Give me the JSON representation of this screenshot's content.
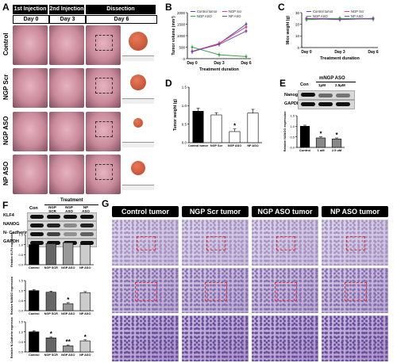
{
  "panel_a": {
    "label": "A",
    "headers": [
      "1st Injection",
      "2nd Injection",
      "Dissection"
    ],
    "days": [
      "Day 0",
      "Day 3",
      "Day 6"
    ],
    "rows": [
      "Control",
      "NGP Scr",
      "NGP ASO",
      "NP ASO"
    ],
    "colors": {
      "skin": "#c98a9a",
      "tumor": "#b8452e",
      "bg": "#ffffff"
    }
  },
  "panel_b": {
    "label": "B",
    "chart_data": {
      "type": "line",
      "x": [
        "Day 0",
        "Day 3",
        "Day 6"
      ],
      "ylabel": "Tumor volume (mm³)",
      "xlabel": "Treatment duration",
      "yticks": [
        "0",
        "500",
        "1000",
        "1500",
        "2000"
      ],
      "ylim": [
        0,
        2000
      ],
      "series": [
        {
          "name": "Control tumor",
          "color": "#3b56a6",
          "values": [
            300,
            650,
            1500
          ]
        },
        {
          "name": "NGP Scr",
          "color": "#d93a8a",
          "values": [
            320,
            660,
            1380
          ]
        },
        {
          "name": "NGP ASO",
          "color": "#3aa043",
          "values": [
            500,
            170,
            90
          ]
        },
        {
          "name": "NP ASO",
          "color": "#7a4aa6",
          "values": [
            310,
            620,
            1200
          ]
        }
      ]
    }
  },
  "panel_c": {
    "label": "C",
    "chart_data": {
      "type": "line",
      "x": [
        "Day 0",
        "Day 3",
        "Day 6"
      ],
      "ylabel": "Mice weight (g)",
      "xlabel": "Treatment duration",
      "yticks": [
        "0",
        "10",
        "20",
        "30"
      ],
      "ylim": [
        0,
        30
      ],
      "series": [
        {
          "name": "Control tumor",
          "color": "#3b56a6",
          "values": [
            25,
            25,
            25
          ]
        },
        {
          "name": "NGP Scr",
          "color": "#d93a8a",
          "values": [
            25,
            24.5,
            25
          ]
        },
        {
          "name": "NGP ASO",
          "color": "#3aa043",
          "values": [
            24,
            25,
            24.5
          ]
        },
        {
          "name": "NP ASO",
          "color": "#7a4aa6",
          "values": [
            25,
            24,
            25
          ]
        }
      ]
    }
  },
  "panel_d": {
    "label": "D",
    "chart_data": {
      "type": "bar",
      "categories": [
        "Control tumor",
        "NGP Scr",
        "NGP ASO",
        "NP ASO"
      ],
      "values": [
        0.85,
        0.75,
        0.3,
        0.8
      ],
      "errors": [
        0.08,
        0.06,
        0.07,
        0.1
      ],
      "fills": [
        "#000000",
        "#ffffff",
        "#ffffff",
        "#ffffff"
      ],
      "ylabel": "Tumor weight (g)",
      "yticks": [
        "0.0",
        "0.5",
        "1.0",
        "1.5"
      ],
      "ylim": [
        0,
        1.5
      ],
      "significance": [
        "",
        "",
        "*",
        ""
      ]
    }
  },
  "panel_e": {
    "label": "E",
    "blot_header": "mNGP ASO",
    "blot_lanes": [
      "Con",
      "1μM",
      "2.5μM"
    ],
    "blot_rows": [
      "Nanog",
      "GAPDH"
    ],
    "chart_data": {
      "type": "bar",
      "categories": [
        "Control",
        "1 uM",
        "2.5 uM"
      ],
      "values": [
        1.0,
        0.45,
        0.4
      ],
      "fills": [
        "#000000",
        "#888888",
        "#888888"
      ],
      "ylabel": "Relative NANOG expression",
      "yticks": [
        "0.0",
        "0.5",
        "1.0",
        "1.5"
      ],
      "ylim": [
        0,
        1.5
      ],
      "significance": [
        "",
        "*",
        "*"
      ]
    }
  },
  "panel_f": {
    "label": "F",
    "blot_title": "Treatment",
    "blot_lanes": [
      "Con",
      "NGP SCR",
      "NGP ASO",
      "NP ASO"
    ],
    "blot_rows": [
      "KLF4",
      "NANOG",
      "N- Cadherin",
      "GAPDH"
    ],
    "chart_data": [
      {
        "type": "bar",
        "categories": [
          "Control",
          "NGP SCR",
          "NGP ASO",
          "NP ASO"
        ],
        "values": [
          1.0,
          1.05,
          1.1,
          1.0
        ],
        "fills": [
          "#000000",
          "#666666",
          "#999999",
          "#cccccc"
        ],
        "ylabel": "Relative KLF4 expression",
        "yticks": [
          "0.0",
          "0.5",
          "1.0",
          "1.5"
        ],
        "ylim": [
          0,
          1.5
        ],
        "significance": [
          "",
          "",
          "",
          ""
        ]
      },
      {
        "type": "bar",
        "categories": [
          "Control",
          "NGP SCR",
          "NGP ASO",
          "NP ASO"
        ],
        "values": [
          1.0,
          0.92,
          0.35,
          0.9
        ],
        "fills": [
          "#000000",
          "#666666",
          "#999999",
          "#cccccc"
        ],
        "ylabel": "Relative NANOG expression",
        "yticks": [
          "0.0",
          "0.5",
          "1.0",
          "1.5"
        ],
        "ylim": [
          0,
          1.5
        ],
        "significance": [
          "",
          "",
          "*",
          ""
        ]
      },
      {
        "type": "bar",
        "categories": [
          "Control",
          "NGP SCR",
          "NGP ASO",
          "NP ASO"
        ],
        "values": [
          1.0,
          0.7,
          0.3,
          0.55
        ],
        "fills": [
          "#000000",
          "#666666",
          "#999999",
          "#cccccc"
        ],
        "ylabel": "Relative N-Cadherin expression",
        "yticks": [
          "0.0",
          "0.5",
          "1.0",
          "1.5"
        ],
        "ylim": [
          0,
          1.5
        ],
        "significance": [
          "",
          "*",
          "**",
          "*"
        ]
      }
    ]
  },
  "panel_g": {
    "label": "G",
    "headers": [
      "Control tumor",
      "NGP Scr tumor",
      "NGP ASO tumor",
      "NP ASO tumor"
    ],
    "colors": {
      "stain_light": "#c9bde0",
      "stain_dark": "#6a4a9a",
      "box": "#e33333"
    }
  }
}
